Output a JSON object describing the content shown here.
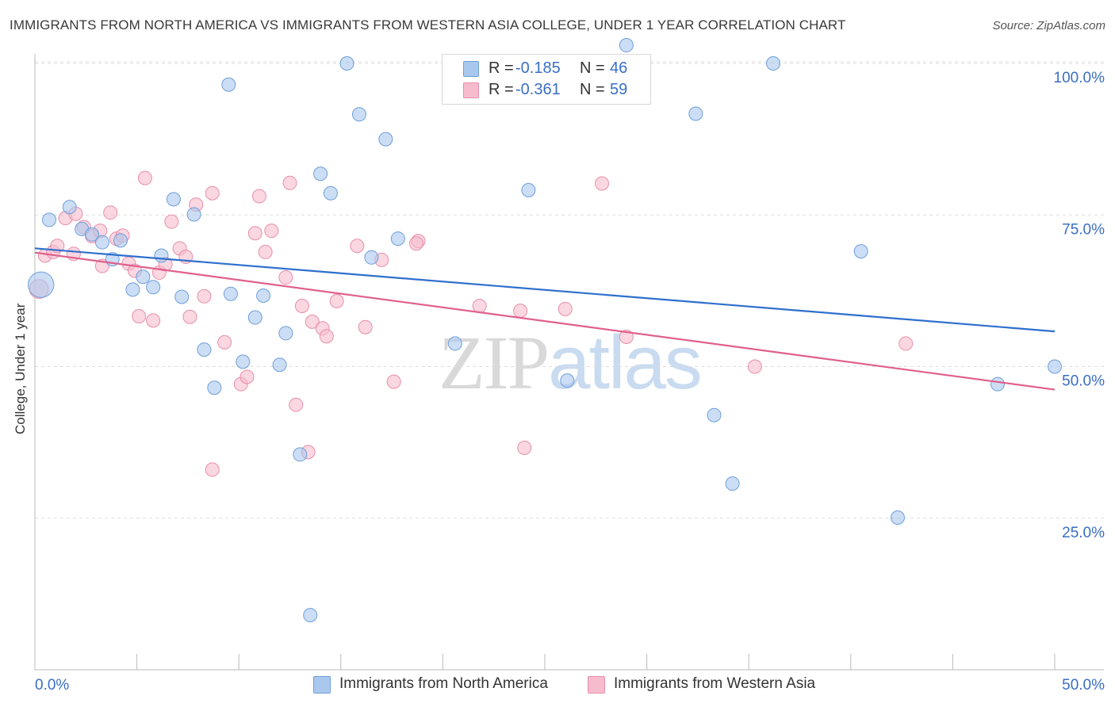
{
  "title": "IMMIGRANTS FROM NORTH AMERICA VS IMMIGRANTS FROM WESTERN ASIA COLLEGE, UNDER 1 YEAR CORRELATION CHART",
  "source": "Source: ZipAtlas.com",
  "watermark": {
    "zip": "ZIP",
    "atlas": "atlas"
  },
  "legend": {
    "rows": [
      {
        "r_label": "R =",
        "r_value": "-0.185",
        "n_label": "N =",
        "n_value": "46"
      },
      {
        "r_label": "R =",
        "r_value": "-0.361",
        "n_label": "N =",
        "n_value": "59"
      }
    ]
  },
  "colors": {
    "blue_fill": "#aac8ee",
    "blue_stroke": "#6f9fd8",
    "blue_line": "#2e6fce",
    "pink_fill": "#f6bccd",
    "pink_stroke": "#e88fab",
    "pink_line": "#e0608d",
    "tick_label": "#3a6fc4",
    "grid": "#dddddd"
  },
  "chart_data": {
    "type": "scatter",
    "title": "IMMIGRANTS FROM NORTH AMERICA VS IMMIGRANTS FROM WESTERN ASIA COLLEGE, UNDER 1 YEAR CORRELATION CHART",
    "xlabel": "",
    "ylabel": "College, Under 1 year",
    "xlim": [
      0,
      50
    ],
    "ylim": [
      0,
      105
    ],
    "x_tick_labels": [
      "0.0%",
      "50.0%"
    ],
    "y_ticks": [
      25,
      50,
      75,
      100
    ],
    "y_tick_labels": [
      "25.0%",
      "50.0%",
      "75.0%",
      "100.0%"
    ],
    "grid": true,
    "legend_position": "top-center",
    "series": [
      {
        "name": "Immigrants from North America",
        "r": -0.185,
        "n": 46,
        "trend": {
          "x": [
            0,
            50
          ],
          "y": [
            69.5,
            55.8
          ]
        },
        "points": [
          [
            0.3,
            63.5,
            1.9
          ],
          [
            0.7,
            74.2,
            1
          ],
          [
            1.7,
            76.3,
            1
          ],
          [
            2.3,
            72.7,
            1
          ],
          [
            2.8,
            71.8,
            1
          ],
          [
            3.3,
            70.5,
            1
          ],
          [
            3.8,
            67.7,
            1
          ],
          [
            4.2,
            70.8,
            1
          ],
          [
            4.8,
            62.7,
            1
          ],
          [
            5.3,
            64.8,
            1
          ],
          [
            5.8,
            63.1,
            1
          ],
          [
            6.2,
            68.3,
            1
          ],
          [
            6.8,
            77.6,
            1
          ],
          [
            7.2,
            61.5,
            1
          ],
          [
            7.8,
            75.1,
            1
          ],
          [
            8.3,
            52.8,
            1
          ],
          [
            8.8,
            46.5,
            1
          ],
          [
            9.5,
            96.5,
            1
          ],
          [
            9.6,
            62.0,
            1
          ],
          [
            10.2,
            50.8,
            1
          ],
          [
            10.8,
            58.1,
            1
          ],
          [
            11.2,
            61.7,
            1
          ],
          [
            12.0,
            50.3,
            1
          ],
          [
            12.3,
            55.5,
            1
          ],
          [
            13.0,
            35.5,
            1
          ],
          [
            13.5,
            9.0,
            1
          ],
          [
            14.0,
            81.8,
            1
          ],
          [
            14.5,
            78.6,
            1
          ],
          [
            15.3,
            100.0,
            1
          ],
          [
            15.9,
            91.6,
            1
          ],
          [
            16.5,
            68.0,
            1
          ],
          [
            17.2,
            87.5,
            1
          ],
          [
            17.8,
            71.1,
            1
          ],
          [
            20.6,
            53.8,
            1
          ],
          [
            24.2,
            79.1,
            1
          ],
          [
            26.1,
            47.7,
            1
          ],
          [
            28.5,
            100.0,
            1
          ],
          [
            29.0,
            103.0,
            1
          ],
          [
            32.4,
            91.7,
            1
          ],
          [
            33.3,
            42.0,
            1
          ],
          [
            34.2,
            30.7,
            1
          ],
          [
            36.2,
            100.0,
            1
          ],
          [
            40.5,
            69.0,
            1
          ],
          [
            42.3,
            25.1,
            1
          ],
          [
            47.2,
            47.1,
            1
          ],
          [
            50.0,
            50.0,
            1
          ]
        ]
      },
      {
        "name": "Immigrants from Western Asia",
        "r": -0.361,
        "n": 59,
        "trend": {
          "x": [
            0,
            50
          ],
          "y": [
            68.8,
            46.2
          ]
        },
        "points": [
          [
            0.2,
            62.8,
            1.4
          ],
          [
            0.5,
            68.3,
            1
          ],
          [
            0.9,
            68.9,
            1
          ],
          [
            1.1,
            69.9,
            1
          ],
          [
            1.5,
            74.5,
            1
          ],
          [
            1.9,
            68.6,
            1
          ],
          [
            2.0,
            75.2,
            1
          ],
          [
            2.4,
            73.0,
            1
          ],
          [
            2.8,
            71.5,
            1
          ],
          [
            3.2,
            72.4,
            1
          ],
          [
            3.3,
            66.6,
            1
          ],
          [
            3.7,
            75.4,
            1
          ],
          [
            4.0,
            71.1,
            1
          ],
          [
            4.3,
            71.6,
            1
          ],
          [
            4.6,
            67.0,
            1
          ],
          [
            4.9,
            65.8,
            1
          ],
          [
            5.1,
            58.3,
            1
          ],
          [
            5.4,
            81.1,
            1
          ],
          [
            5.8,
            57.6,
            1
          ],
          [
            6.1,
            65.5,
            1
          ],
          [
            6.4,
            66.9,
            1
          ],
          [
            6.7,
            73.9,
            1
          ],
          [
            7.1,
            69.5,
            1
          ],
          [
            7.4,
            68.1,
            1
          ],
          [
            7.6,
            58.2,
            1
          ],
          [
            7.9,
            76.7,
            1
          ],
          [
            8.3,
            61.6,
            1
          ],
          [
            8.7,
            78.6,
            1
          ],
          [
            9.3,
            54.0,
            1
          ],
          [
            10.1,
            47.1,
            1
          ],
          [
            10.4,
            48.3,
            1
          ],
          [
            10.8,
            72.0,
            1
          ],
          [
            11.0,
            78.1,
            1
          ],
          [
            11.3,
            68.9,
            1
          ],
          [
            11.6,
            72.4,
            1
          ],
          [
            12.3,
            64.7,
            1
          ],
          [
            12.5,
            80.3,
            1
          ],
          [
            12.8,
            43.7,
            1
          ],
          [
            13.1,
            60.0,
            1
          ],
          [
            13.4,
            35.9,
            1
          ],
          [
            13.6,
            57.4,
            1
          ],
          [
            14.1,
            56.3,
            1
          ],
          [
            14.3,
            55.0,
            1
          ],
          [
            14.8,
            60.8,
            1
          ],
          [
            15.8,
            69.9,
            1
          ],
          [
            16.2,
            56.5,
            1
          ],
          [
            17.6,
            47.5,
            1
          ],
          [
            17.0,
            67.6,
            1
          ],
          [
            18.8,
            70.7,
            1
          ],
          [
            18.7,
            70.3,
            1
          ],
          [
            21.8,
            60.0,
            1
          ],
          [
            23.8,
            59.2,
            1
          ],
          [
            24.0,
            36.6,
            1
          ],
          [
            26.0,
            59.5,
            1
          ],
          [
            27.8,
            80.2,
            1
          ],
          [
            29.0,
            54.9,
            1
          ],
          [
            35.3,
            50.0,
            1
          ],
          [
            42.7,
            53.8,
            1
          ],
          [
            8.7,
            33.0,
            1
          ]
        ]
      }
    ]
  },
  "bottom_legend": [
    "Immigrants from North America",
    "Immigrants from Western Asia"
  ]
}
